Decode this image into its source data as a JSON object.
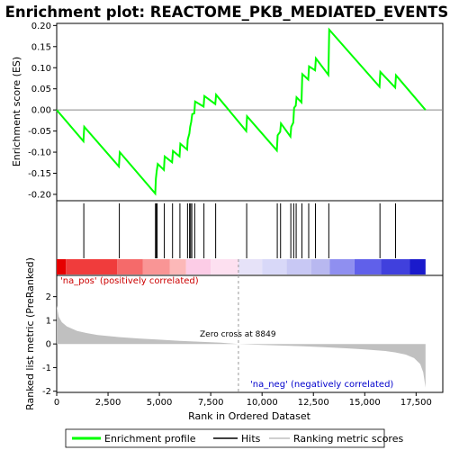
{
  "chart_data": {
    "type": "line",
    "title": "Enrichment plot: REACTOME_PKB_MEDIATED_EVENTS",
    "es_panel": {
      "ylabel": "Enrichment score (ES)",
      "ylim": [
        -0.215,
        0.205
      ],
      "yticks": [
        0.2,
        0.15,
        0.1,
        0.05,
        0.0,
        -0.05,
        -0.1,
        -0.15,
        -0.2
      ],
      "ytick_labels": [
        "0.20",
        "0.15",
        "0.10",
        "0.05",
        "0.00",
        "-0.05",
        "-0.10",
        "-0.15",
        "-0.20"
      ],
      "line_color": "#00ff00",
      "points": [
        [
          0,
          0.0
        ],
        [
          1300,
          -0.074
        ],
        [
          1340,
          -0.04
        ],
        [
          3030,
          -0.134
        ],
        [
          3070,
          -0.1
        ],
        [
          4800,
          -0.198
        ],
        [
          4830,
          -0.163
        ],
        [
          4870,
          -0.145
        ],
        [
          4920,
          -0.128
        ],
        [
          5220,
          -0.142
        ],
        [
          5260,
          -0.11
        ],
        [
          5620,
          -0.124
        ],
        [
          5660,
          -0.097
        ],
        [
          5980,
          -0.11
        ],
        [
          6020,
          -0.08
        ],
        [
          6350,
          -0.094
        ],
        [
          6380,
          -0.07
        ],
        [
          6460,
          -0.056
        ],
        [
          6500,
          -0.04
        ],
        [
          6550,
          -0.028
        ],
        [
          6600,
          -0.01
        ],
        [
          6700,
          -0.008
        ],
        [
          6740,
          0.02
        ],
        [
          7150,
          0.008
        ],
        [
          7190,
          0.033
        ],
        [
          7720,
          0.014
        ],
        [
          7760,
          0.036
        ],
        [
          9230,
          -0.05
        ],
        [
          9270,
          -0.015
        ],
        [
          10720,
          -0.096
        ],
        [
          10760,
          -0.06
        ],
        [
          10880,
          -0.052
        ],
        [
          10920,
          -0.032
        ],
        [
          11380,
          -0.063
        ],
        [
          11420,
          -0.04
        ],
        [
          11520,
          -0.03
        ],
        [
          11560,
          0.005
        ],
        [
          11640,
          0.01
        ],
        [
          11680,
          0.03
        ],
        [
          11920,
          0.018
        ],
        [
          11960,
          0.085
        ],
        [
          12250,
          0.072
        ],
        [
          12290,
          0.103
        ],
        [
          12580,
          0.094
        ],
        [
          12620,
          0.122
        ],
        [
          13230,
          0.083
        ],
        [
          13270,
          0.19
        ],
        [
          15720,
          0.055
        ],
        [
          15760,
          0.09
        ],
        [
          16480,
          0.053
        ],
        [
          16520,
          0.082
        ],
        [
          17960,
          0.0
        ]
      ]
    },
    "hits": {
      "rank_positions": [
        1320,
        3050,
        4810,
        4850,
        4890,
        5240,
        5640,
        6000,
        6370,
        6470,
        6520,
        6580,
        6720,
        7170,
        7740,
        9250,
        10740,
        10900,
        11400,
        11540,
        11660,
        11940,
        12270,
        12600,
        13250,
        15740,
        16500
      ]
    },
    "ranked_metric": {
      "ylabel": "Ranked list metric (PreRanked)",
      "ylim": [
        -2.05,
        2.9
      ],
      "yticks": [
        2,
        1,
        0,
        -1,
        -2
      ],
      "ytick_labels": [
        "2",
        "1",
        "0",
        "-1",
        "-2"
      ],
      "fill_color": "#c0c0c0",
      "points": [
        [
          0,
          1.62
        ],
        [
          100,
          1.15
        ],
        [
          250,
          0.92
        ],
        [
          500,
          0.74
        ],
        [
          1000,
          0.55
        ],
        [
          1500,
          0.45
        ],
        [
          2000,
          0.38
        ],
        [
          3000,
          0.29
        ],
        [
          4000,
          0.23
        ],
        [
          5000,
          0.18
        ],
        [
          6000,
          0.13
        ],
        [
          7000,
          0.09
        ],
        [
          8000,
          0.05
        ],
        [
          8849,
          0.0
        ],
        [
          10000,
          -0.04
        ],
        [
          11000,
          -0.07
        ],
        [
          12000,
          -0.1
        ],
        [
          13000,
          -0.14
        ],
        [
          14000,
          -0.18
        ],
        [
          15000,
          -0.23
        ],
        [
          16000,
          -0.3
        ],
        [
          16500,
          -0.36
        ],
        [
          17000,
          -0.45
        ],
        [
          17400,
          -0.6
        ],
        [
          17700,
          -0.85
        ],
        [
          17850,
          -1.2
        ],
        [
          17960,
          -1.85
        ]
      ],
      "zero_cross_rank": 8849,
      "zero_cross_label": "Zero cross at 8849",
      "pos_label": "'na_pos' (positively correlated)",
      "pos_color": "#cc0000",
      "neg_label": "'na_neg' (negatively correlated)",
      "neg_color": "#0000cc"
    },
    "heatbar": {
      "segments": [
        {
          "to": 450,
          "color": "#e60000"
        },
        {
          "to": 2950,
          "color": "#f03c3c"
        },
        {
          "to": 4200,
          "color": "#f56a6a"
        },
        {
          "to": 5500,
          "color": "#f99595"
        },
        {
          "to": 6300,
          "color": "#fcb8b8"
        },
        {
          "to": 7500,
          "color": "#fccce6"
        },
        {
          "to": 8849,
          "color": "#fde0f0"
        },
        {
          "to": 10000,
          "color": "#e6e2f8"
        },
        {
          "to": 11200,
          "color": "#d8d8f8"
        },
        {
          "to": 12400,
          "color": "#c8c8f4"
        },
        {
          "to": 13300,
          "color": "#b8b8f0"
        },
        {
          "to": 14500,
          "color": "#8f8ff0"
        },
        {
          "to": 15800,
          "color": "#6060ea"
        },
        {
          "to": 17200,
          "color": "#4040dd"
        },
        {
          "to": 17960,
          "color": "#1a1acc"
        }
      ]
    },
    "x_axis": {
      "xlabel": "Rank in Ordered Dataset",
      "xlim": [
        0,
        18800
      ],
      "xticks": [
        0,
        2500,
        5000,
        7500,
        10000,
        12500,
        15000,
        17500
      ],
      "xtick_labels": [
        "0",
        "2,500",
        "5,000",
        "7,500",
        "10,000",
        "12,500",
        "15,000",
        "17,500"
      ],
      "n_genes": 17960
    },
    "legend": {
      "items": [
        {
          "label": "Enrichment profile",
          "color": "#00ff00"
        },
        {
          "label": "Hits",
          "color": "#000000"
        },
        {
          "label": "Ranking metric scores",
          "color": "#c0c0c0"
        }
      ]
    }
  }
}
